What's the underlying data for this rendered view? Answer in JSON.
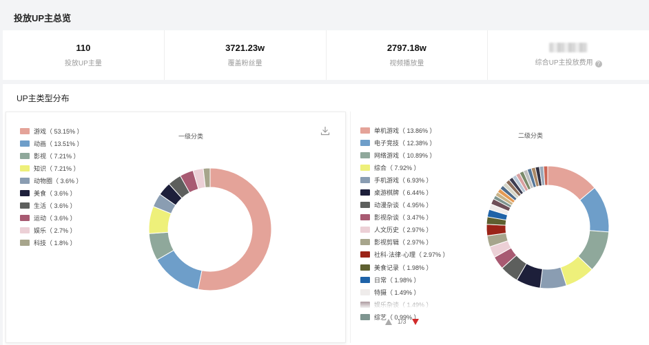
{
  "page_title": "投放UP主总览",
  "stats": [
    {
      "value": "110",
      "label": "投放UP主量"
    },
    {
      "value": "3721.23w",
      "label": "覆盖粉丝量"
    },
    {
      "value": "2797.18w",
      "label": "视频播放量"
    },
    {
      "value": "",
      "label": "综合UP主投放费用",
      "help_icon": "question-circle-icon"
    }
  ],
  "section_title": "UP主类型分布",
  "left_chart": {
    "title": "一级分类",
    "download_icon": "download-icon",
    "legend": [
      {
        "label": "游戏（ 53.15% ）"
      },
      {
        "label": "动画（ 13.51% ）"
      },
      {
        "label": "影视（ 7.21% ）"
      },
      {
        "label": "知识（ 7.21% ）"
      },
      {
        "label": "动物圈（ 3.6% ）"
      },
      {
        "label": "美食（ 3.6% ）"
      },
      {
        "label": "生活（ 3.6% ）"
      },
      {
        "label": "运动（ 3.6% ）"
      },
      {
        "label": "娱乐（ 2.7% ）"
      },
      {
        "label": "科技（ 1.8% ）"
      }
    ]
  },
  "right_chart": {
    "title": "二级分类",
    "pager": "1/3",
    "legend": [
      {
        "label": "单机游戏（ 13.86% ）"
      },
      {
        "label": "电子竞技（ 12.38% ）"
      },
      {
        "label": "网络游戏（ 10.89% ）"
      },
      {
        "label": "综合（ 7.92% ）"
      },
      {
        "label": "手机游戏（ 6.93% ）"
      },
      {
        "label": "桌游棋牌（ 6.44% ）"
      },
      {
        "label": "动漫杂谈（ 4.95% ）"
      },
      {
        "label": "影视杂谈（ 3.47% ）"
      },
      {
        "label": "人文历史（ 2.97% ）"
      },
      {
        "label": "影视剪辑（ 2.97% ）"
      },
      {
        "label": "社科·法律·心理（ 2.97% ）"
      },
      {
        "label": "美食记录（ 1.98% ）"
      },
      {
        "label": "日常（ 1.98% ）"
      },
      {
        "label": "特摄（ 1.49% ）"
      },
      {
        "label": "娱乐杂谈（ 1.49% ）"
      },
      {
        "label": "综艺（ 0.99% ）"
      }
    ]
  },
  "chart_data": [
    {
      "type": "pie",
      "title": "一级分类",
      "categories": [
        "游戏",
        "动画",
        "影视",
        "知识",
        "动物圈",
        "美食",
        "生活",
        "运动",
        "娱乐",
        "科技"
      ],
      "values": [
        53.15,
        13.51,
        7.21,
        7.21,
        3.6,
        3.6,
        3.6,
        3.6,
        2.7,
        1.8
      ],
      "colors": [
        "#e4a399",
        "#6e9ec9",
        "#8fa89b",
        "#eef07a",
        "#8a9db2",
        "#1d1f3a",
        "#5d5f5d",
        "#a85a72",
        "#ecd0d6",
        "#a7a58c"
      ],
      "legend_position": "left"
    },
    {
      "type": "pie",
      "title": "二级分类",
      "categories": [
        "单机游戏",
        "电子竞技",
        "网络游戏",
        "综合",
        "手机游戏",
        "桌游棋牌",
        "动漫杂谈",
        "影视杂谈",
        "人文历史",
        "影视剪辑",
        "社科·法律·心理",
        "美食记录",
        "日常",
        "特摄",
        "娱乐杂谈",
        "综艺"
      ],
      "values": [
        13.86,
        12.38,
        10.89,
        7.92,
        6.93,
        6.44,
        4.95,
        3.47,
        2.97,
        2.97,
        2.97,
        1.98,
        1.98,
        1.49,
        1.49,
        0.99
      ],
      "colors": [
        "#e4a399",
        "#6e9ec9",
        "#8fa89b",
        "#eef07a",
        "#8a9db2",
        "#1d1f3a",
        "#5d5f5d",
        "#a85a72",
        "#ecd0d6",
        "#a7a58c",
        "#9b2418",
        "#5e6030",
        "#1f63a8",
        "#efeceb",
        "#6e4f58",
        "#7e9590"
      ],
      "extra_colors": [
        "#c9b48a",
        "#e59a53",
        "#4f6b8a",
        "#d6d6c8",
        "#8c6d5a",
        "#3c3c50",
        "#b7c7d6",
        "#d9a0a0",
        "#7a8a6a",
        "#c0c0c0",
        "#557799",
        "#aa8866",
        "#333344",
        "#99aabb",
        "#cc6655"
      ],
      "legend_position": "left"
    }
  ]
}
